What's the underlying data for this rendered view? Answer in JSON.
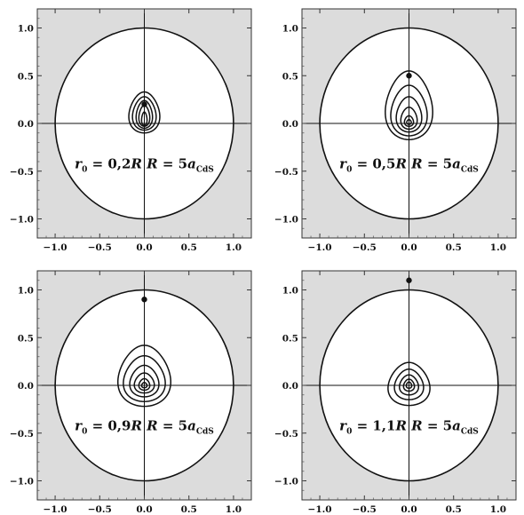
{
  "chart_data": [
    {
      "type": "contour",
      "panel": "top-left",
      "xlim": [
        -1.2,
        1.2
      ],
      "ylim": [
        -1.2,
        1.2
      ],
      "xticks": [
        "−1.0",
        "−0.5",
        "0.0",
        "0.5",
        "1.0"
      ],
      "yticks": [
        "1.0",
        "0.5",
        "0.0",
        "−0.5",
        "−1.0"
      ],
      "boundary_radius": 1.0,
      "point": {
        "x": 0.0,
        "y": 0.2
      },
      "contours": [
        {
          "ymin": -0.1,
          "ymax": 0.33,
          "rx": 0.17
        },
        {
          "ymin": -0.07,
          "ymax": 0.28,
          "rx": 0.13
        },
        {
          "ymin": -0.05,
          "ymax": 0.24,
          "rx": 0.09
        },
        {
          "ymin": -0.03,
          "ymax": 0.19,
          "rx": 0.06
        },
        {
          "ymin": -0.02,
          "ymax": 0.12,
          "rx": 0.03
        }
      ],
      "annotation": {
        "r": "r",
        "r_sub": "0",
        "eq1": " = 0,2",
        "R1": "R",
        "eq2": "R",
        "eq3": " = 5",
        "a": "a",
        "a_sub": "CdS"
      }
    },
    {
      "type": "contour",
      "panel": "top-right",
      "xlim": [
        -1.2,
        1.2
      ],
      "ylim": [
        -1.2,
        1.2
      ],
      "xticks": [
        "−1.0",
        "−0.5",
        "0.0",
        "0.5",
        "1.0"
      ],
      "yticks": [
        "1.0",
        "0.5",
        "0.0",
        "−0.5",
        "−1.0"
      ],
      "boundary_radius": 1.0,
      "point": {
        "x": 0.0,
        "y": 0.5
      },
      "contours": [
        {
          "ymin": -0.17,
          "ymax": 0.55,
          "rx": 0.26
        },
        {
          "ymin": -0.13,
          "ymax": 0.4,
          "rx": 0.2
        },
        {
          "ymin": -0.09,
          "ymax": 0.28,
          "rx": 0.14
        },
        {
          "ymin": -0.06,
          "ymax": 0.17,
          "rx": 0.09
        },
        {
          "ymin": -0.03,
          "ymax": 0.08,
          "rx": 0.05
        },
        {
          "ymin": -0.01,
          "ymax": 0.04,
          "rx": 0.025
        }
      ],
      "annotation": {
        "r": "r",
        "r_sub": "0",
        "eq1": " = 0,5",
        "R1": "R",
        "eq2": "R",
        "eq3": " = 5",
        "a": "a",
        "a_sub": "CdS"
      }
    },
    {
      "type": "contour",
      "panel": "bottom-left",
      "xlim": [
        -1.2,
        1.2
      ],
      "ylim": [
        -1.2,
        1.2
      ],
      "xticks": [
        "−1.0",
        "−0.5",
        "0.0",
        "0.5",
        "1.0"
      ],
      "yticks": [
        "1.0",
        "0.5",
        "0.0",
        "−0.5",
        "−1.0"
      ],
      "boundary_radius": 1.0,
      "point": {
        "x": 0.0,
        "y": 0.9
      },
      "contours": [
        {
          "ymin": -0.22,
          "ymax": 0.42,
          "rx": 0.29
        },
        {
          "ymin": -0.17,
          "ymax": 0.31,
          "rx": 0.23
        },
        {
          "ymin": -0.12,
          "ymax": 0.21,
          "rx": 0.16
        },
        {
          "ymin": -0.08,
          "ymax": 0.13,
          "rx": 0.11
        },
        {
          "ymin": -0.05,
          "ymax": 0.07,
          "rx": 0.06
        },
        {
          "ymin": -0.025,
          "ymax": 0.03,
          "rx": 0.03
        }
      ],
      "annotation": {
        "r": "r",
        "r_sub": "0",
        "eq1": " = 0,9",
        "R1": "R",
        "eq2": "R",
        "eq3": " = 5",
        "a": "a",
        "a_sub": "CdS"
      }
    },
    {
      "type": "contour",
      "panel": "bottom-right",
      "xlim": [
        -1.2,
        1.2
      ],
      "ylim": [
        -1.2,
        1.2
      ],
      "xticks": [
        "−1.0",
        "−0.5",
        "0.0",
        "0.5",
        "1.0"
      ],
      "yticks": [
        "1.0",
        "0.5",
        "0.0",
        "−0.5",
        "−1.0"
      ],
      "boundary_radius": 1.0,
      "point": {
        "x": 0.0,
        "y": 1.1
      },
      "contours": [
        {
          "ymin": -0.21,
          "ymax": 0.24,
          "rx": 0.23
        },
        {
          "ymin": -0.15,
          "ymax": 0.17,
          "rx": 0.16
        },
        {
          "ymin": -0.1,
          "ymax": 0.11,
          "rx": 0.105
        },
        {
          "ymin": -0.06,
          "ymax": 0.065,
          "rx": 0.06
        },
        {
          "ymin": -0.03,
          "ymax": 0.035,
          "rx": 0.03
        }
      ],
      "annotation": {
        "r": "r",
        "r_sub": "0",
        "eq1": " = 1,1",
        "R1": "R",
        "eq2": "R",
        "eq3": " = 5",
        "a": "a",
        "a_sub": "CdS"
      }
    }
  ]
}
